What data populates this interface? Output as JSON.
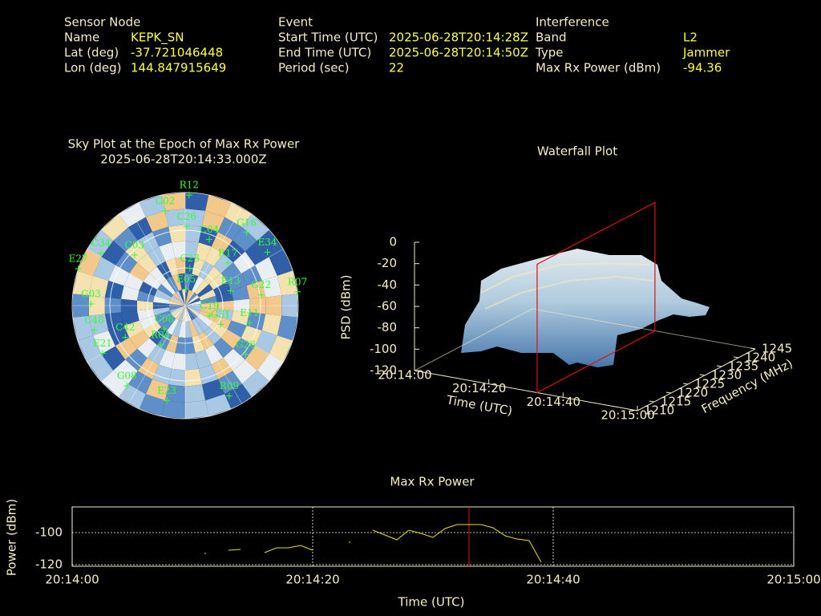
{
  "header": {
    "sensor": {
      "title": "Sensor Node",
      "rows": [
        [
          "Name",
          "KEPK_SN"
        ],
        [
          "Lat (deg)",
          "-37.721046448"
        ],
        [
          "Lon (deg)",
          "144.847915649"
        ]
      ]
    },
    "event": {
      "title": "Event",
      "rows": [
        [
          "Start Time (UTC)",
          "2025-06-28T20:14:28Z"
        ],
        [
          "End Time (UTC)",
          "2025-06-28T20:14:50Z"
        ],
        [
          "Period (sec)",
          "22"
        ]
      ]
    },
    "interference": {
      "title": "Interference",
      "rows": [
        [
          "Band",
          "L2"
        ],
        [
          "Type",
          "Jammer"
        ],
        [
          "Max Rx Power (dBm)",
          "-94.36"
        ]
      ]
    }
  },
  "chart_data": [
    {
      "type": "polar",
      "title": "Sky Plot at the Epoch of Max Rx Power",
      "subtitle": "2025-06-28T20:14:33.000Z",
      "rlim": [
        0,
        90
      ],
      "satellites": [
        {
          "name": "R12",
          "azimuth": 2,
          "elevation": 2
        },
        {
          "name": "G02",
          "azimuth": 348,
          "elevation": 13
        },
        {
          "name": "G16",
          "azimuth": 40,
          "elevation": 14
        },
        {
          "name": "E34",
          "azimuth": 57,
          "elevation": 12
        },
        {
          "name": "R07",
          "azimuth": 83,
          "elevation": 0
        },
        {
          "name": "G22",
          "azimuth": 82,
          "elevation": 29
        },
        {
          "name": "R09",
          "azimuth": 154,
          "elevation": 10
        },
        {
          "name": "E23",
          "azimuth": 191,
          "elevation": 13
        },
        {
          "name": "G08",
          "azimuth": 216,
          "elevation": 11
        },
        {
          "name": "E21",
          "azimuth": 240,
          "elevation": 14
        },
        {
          "name": "C48",
          "azimuth": 255,
          "elevation": 15
        },
        {
          "name": "G03",
          "azimuth": 271,
          "elevation": 15
        },
        {
          "name": "E27",
          "azimuth": 289,
          "elevation": 0
        },
        {
          "name": "C34",
          "azimuth": 302,
          "elevation": 11
        },
        {
          "name": "C03",
          "azimuth": 315,
          "elevation": 33
        },
        {
          "name": "C26",
          "azimuth": 1,
          "elevation": 27
        },
        {
          "name": "C04",
          "azimuth": 20,
          "elevation": 34
        },
        {
          "name": "R17",
          "azimuth": 45,
          "elevation": 42
        },
        {
          "name": "C23",
          "azimuth": 7,
          "elevation": 60
        },
        {
          "name": "E05",
          "azimuth": 3,
          "elevation": 77
        },
        {
          "name": "E13",
          "azimuth": 72,
          "elevation": 52
        },
        {
          "name": "C42",
          "azimuth": 242,
          "elevation": 36
        },
        {
          "name": "R04",
          "azimuth": 212,
          "elevation": 53
        },
        {
          "name": "C08",
          "azimuth": 222,
          "elevation": 65
        },
        {
          "name": "C19",
          "azimuth": 113,
          "elevation": 69
        },
        {
          "name": "G31",
          "azimuth": 118,
          "elevation": 58
        },
        {
          "name": "G26",
          "azimuth": 129,
          "elevation": 28
        },
        {
          "name": "E11",
          "azimuth": 105,
          "elevation": 37
        }
      ]
    },
    {
      "type": "surface",
      "title": "Waterfall Plot",
      "xlabel": "Time (UTC)",
      "ylabel": "Frequency (MHz)",
      "zlabel": "PSD (dBm)",
      "xlim": [
        "20:14:00",
        "20:15:00"
      ],
      "xticks": [
        "20:14:00",
        "20:14:20",
        "20:14:40",
        "20:15:00"
      ],
      "ylim": [
        1210,
        1245
      ],
      "yticks": [
        1210,
        1215,
        1220,
        1225,
        1230,
        1235,
        1240,
        1245
      ],
      "zlim": [
        -120,
        0
      ],
      "zticks": [
        0,
        -20,
        -40,
        -60,
        -80,
        -100,
        -120
      ],
      "marker_x": "20:14:33",
      "marker_color": "#e01010"
    },
    {
      "type": "line",
      "title": "Max Rx Power",
      "xlabel": "Time (UTC)",
      "ylabel": "Power (dBm)",
      "x": [
        "20:14:11",
        "20:14:12",
        "20:14:13",
        "20:14:14",
        "20:14:15",
        "20:14:16",
        "20:14:17",
        "20:14:18",
        "20:14:19",
        "20:14:20",
        "20:14:21",
        "20:14:23",
        "20:14:24",
        "20:14:25",
        "20:14:27",
        "20:14:28",
        "20:14:29",
        "20:14:30",
        "20:14:31",
        "20:14:32",
        "20:14:33",
        "20:14:34",
        "20:14:35",
        "20:14:36",
        "20:14:37",
        "20:14:38",
        "20:14:39"
      ],
      "values": [
        -113,
        null,
        -111,
        -110.5,
        null,
        -112.5,
        -109.5,
        -109.5,
        -108,
        -111,
        null,
        -106,
        null,
        -98.5,
        -104.5,
        -98.5,
        -100.5,
        -103,
        -97.5,
        -95,
        -95,
        -95,
        -97,
        -102,
        -104,
        -105,
        -118.5
      ],
      "color": "#e8e020",
      "xlim": [
        "20:14:00",
        "20:15:00"
      ],
      "xticks": [
        "20:14:00",
        "20:14:20",
        "20:14:40",
        "20:15:00"
      ],
      "ylim": [
        -121,
        -84
      ],
      "yticks": [
        -100,
        -120
      ],
      "grid": true,
      "marker_x": "20:14:33",
      "marker_color": "#e01010"
    }
  ]
}
